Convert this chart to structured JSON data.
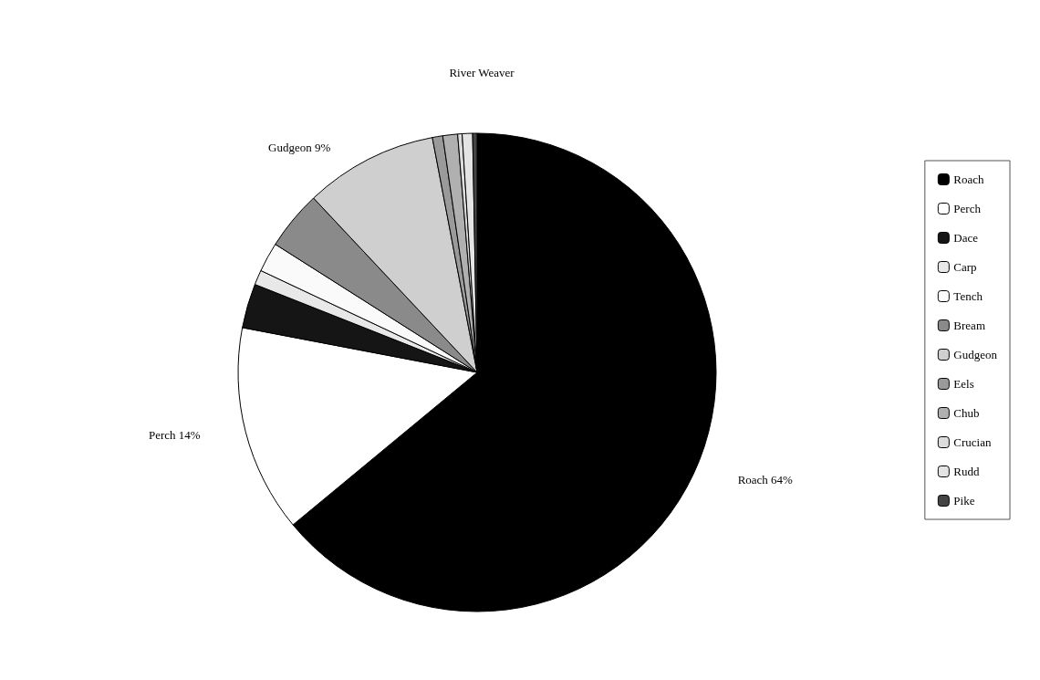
{
  "chart_data": {
    "type": "pie",
    "title": "River Weaver",
    "categories": [
      "Roach",
      "Perch",
      "Dace",
      "Carp",
      "Tench",
      "Bream",
      "Gudgeon",
      "Eels",
      "Chub",
      "Crucian",
      "Rudd",
      "Pike"
    ],
    "values": [
      64,
      14,
      3,
      1,
      2,
      4,
      9,
      0.7,
      1,
      0.3,
      0.7,
      0.3
    ],
    "value_labels": [
      "64%",
      "14%",
      null,
      null,
      null,
      null,
      "9%",
      null,
      null,
      null,
      null,
      null
    ],
    "colors": [
      "#000000",
      "#ffffff",
      "#151515",
      "#e8e8e8",
      "#fafafa",
      "#8a8a8a",
      "#cfcfcf",
      "#9a9a9a",
      "#b0b0b0",
      "#dcdcdc",
      "#e4e4e4",
      "#444444"
    ],
    "legend": "right"
  }
}
